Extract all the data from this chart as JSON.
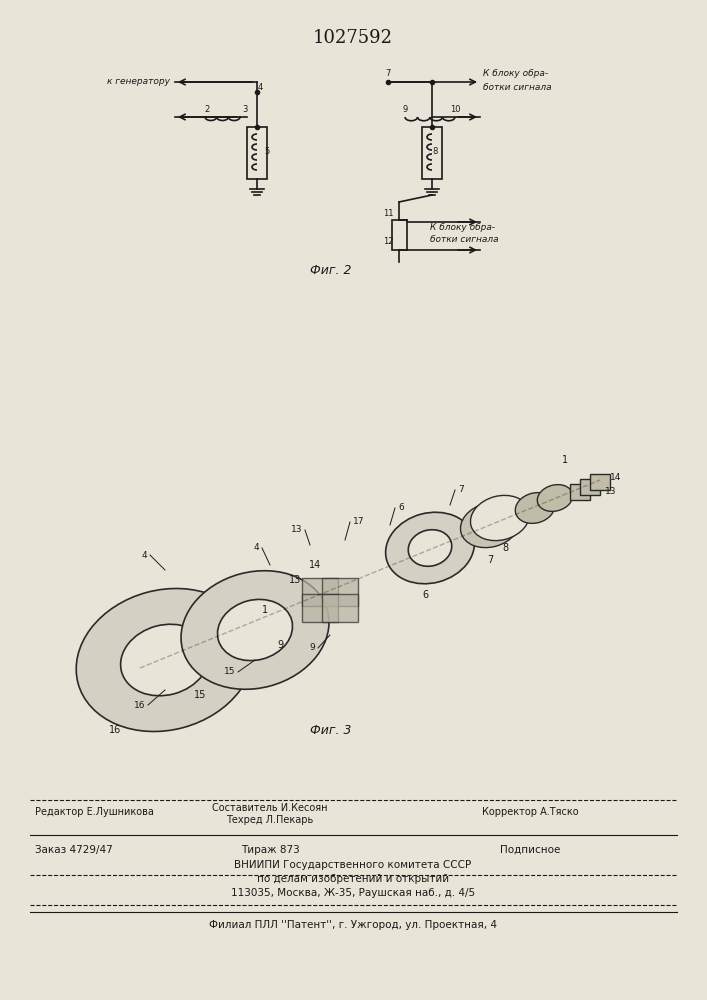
{
  "patent_number": "1027592",
  "bg_color": "#e8e4d8",
  "fig2_label": "Фиг. 2",
  "fig3_label": "Фиг. 3",
  "footer_lines": [
    "Редактор Е.Лушникова        Составитель И.Кесоян",
    "                                Техред Л.Пекарь             Корректор А.Тяско",
    "Заказ 4729/47             Тираж 873                Подписное",
    "        ВНИИПИ Государственного комитета СССР",
    "            по делам изобретений и открытий",
    "        113035, Москва, Ж-35, Раушская наб., д. 4/5",
    "        Филиал ПЛЛ ''Патент'', г. Ужгород, ул. Проектная, 4"
  ],
  "text_color": "#1a1a1a",
  "line_color": "#1a1a1a",
  "circuit_annotations": {
    "к_генератору": "к генератору",
    "к_блоку1": "К блоку обра-\nботки сигнала",
    "к_блоку2": "К блоку обра-\nботки сигнала",
    "nums": [
      "1",
      "2",
      "3",
      "4",
      "5",
      "6",
      "7",
      "8",
      "9",
      "10",
      "11",
      "12"
    ]
  }
}
